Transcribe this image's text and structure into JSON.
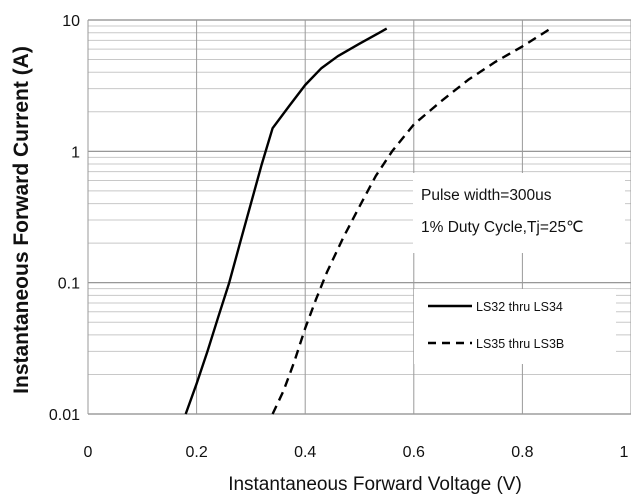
{
  "chart_data": {
    "type": "line",
    "title": "",
    "xlabel": "Instantaneous Forward Voltage (V)",
    "ylabel": "Instantaneous Forward Current (A)",
    "xlim": [
      0,
      1
    ],
    "ylim": [
      0.01,
      10
    ],
    "yscale": "log",
    "x_ticks": [
      0,
      0.2,
      0.4,
      0.6,
      0.8,
      1
    ],
    "x_tick_labels": [
      "0",
      "0.2",
      "0.4",
      "0.6",
      "0.8",
      "1"
    ],
    "y_ticks": [
      0.01,
      0.1,
      1,
      10
    ],
    "y_tick_labels": [
      "0.01",
      "0.1",
      "1",
      "10"
    ],
    "grid": true,
    "annotations": [
      "Pulse width=300us",
      "1% Duty Cycle,Tj=25℃"
    ],
    "legend_position": "right",
    "series": [
      {
        "name": "LS32 thru LS34",
        "style": "solid",
        "x": [
          0.18,
          0.2,
          0.22,
          0.24,
          0.26,
          0.28,
          0.3,
          0.32,
          0.34,
          0.37,
          0.4,
          0.43,
          0.46,
          0.5,
          0.55
        ],
        "y": [
          0.01,
          0.017,
          0.03,
          0.055,
          0.1,
          0.2,
          0.4,
          0.8,
          1.5,
          2.2,
          3.2,
          4.3,
          5.3,
          6.6,
          8.6
        ]
      },
      {
        "name": "LS35 thru LS3B",
        "style": "dashed",
        "x": [
          0.34,
          0.36,
          0.38,
          0.4,
          0.42,
          0.44,
          0.47,
          0.5,
          0.53,
          0.56,
          0.6,
          0.65,
          0.7,
          0.75,
          0.8,
          0.85
        ],
        "y": [
          0.01,
          0.015,
          0.025,
          0.045,
          0.075,
          0.12,
          0.22,
          0.38,
          0.65,
          1.0,
          1.6,
          2.4,
          3.5,
          4.8,
          6.3,
          8.5
        ]
      }
    ]
  }
}
